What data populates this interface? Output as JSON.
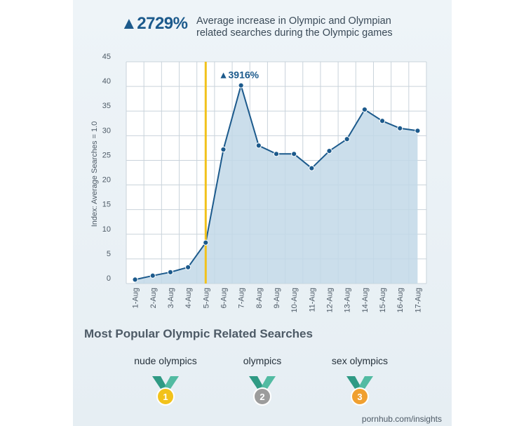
{
  "headline": {
    "stat": "▲2729%",
    "description_line1": "Average increase in Olympic and Olympian",
    "description_line2": "related searches during the Olympic games"
  },
  "chart_data": {
    "type": "area",
    "ylabel": "Index: Average Searches = 1.0",
    "xlabel": "",
    "categories": [
      "1-Aug",
      "2-Aug",
      "3-Aug",
      "4-Aug",
      "5-Aug",
      "6-Aug",
      "7-Aug",
      "8-Aug",
      "9-Aug",
      "10-Aug",
      "11-Aug",
      "12-Aug",
      "13-Aug",
      "14-Aug",
      "15-Aug",
      "16-Aug",
      "17-Aug"
    ],
    "values": [
      0.8,
      1.6,
      2.3,
      3.3,
      8.3,
      27.2,
      40.2,
      28.0,
      26.3,
      26.3,
      23.4,
      26.9,
      29.3,
      35.3,
      33.0,
      31.5,
      31.0
    ],
    "ylim": [
      0,
      45
    ],
    "yticks": [
      0,
      5,
      10,
      15,
      20,
      25,
      30,
      35,
      40,
      45
    ],
    "grid": true,
    "event_marker_category": "5-Aug",
    "peak_annotation": {
      "category": "7-Aug",
      "text": "▲3916%"
    },
    "colors": {
      "line": "#1c5a8c",
      "fill": "#c2d8e8",
      "marker": "#f2c21b",
      "grid": "#c9d3db"
    }
  },
  "popular": {
    "title": "Most Popular Olympic Related Searches",
    "items": [
      {
        "label": "nude olympics",
        "rank": "1",
        "color": "#f2c21b"
      },
      {
        "label": "olympics",
        "rank": "2",
        "color": "#9c9c9c"
      },
      {
        "label": "sex olympics",
        "rank": "3",
        "color": "#f0a030"
      }
    ]
  },
  "credit": "pornhub.com/insights"
}
